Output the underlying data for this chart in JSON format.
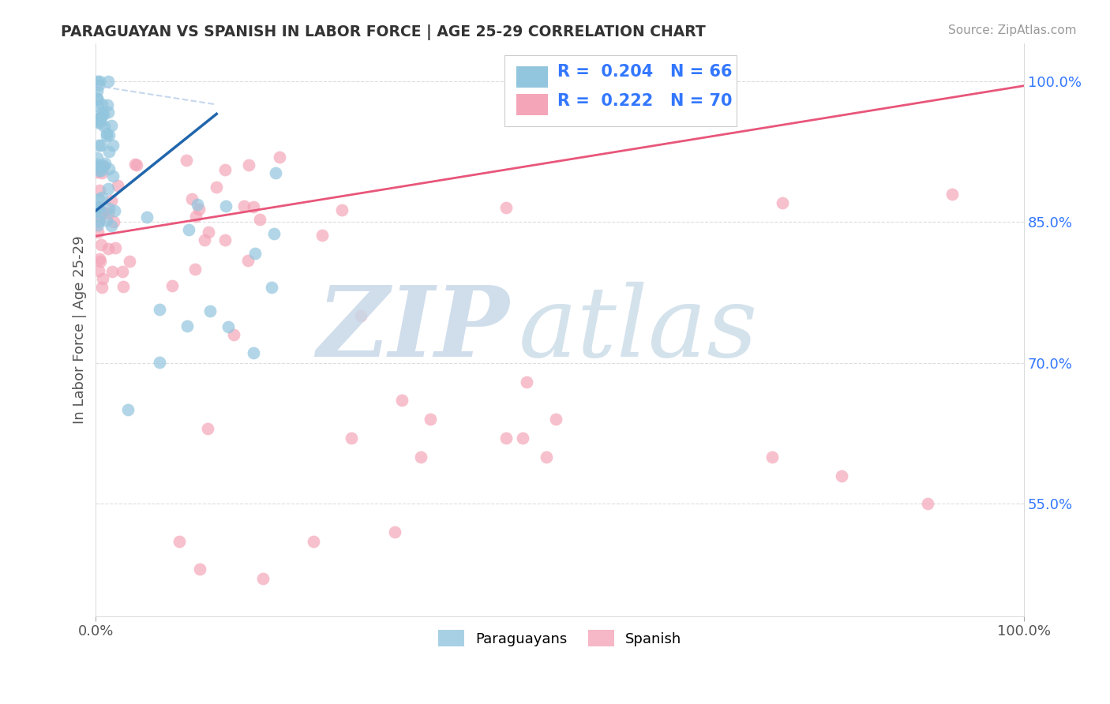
{
  "title": "PARAGUAYAN VS SPANISH IN LABOR FORCE | AGE 25-29 CORRELATION CHART",
  "source": "Source: ZipAtlas.com",
  "ylabel": "In Labor Force | Age 25-29",
  "ytick_vals": [
    0.55,
    0.7,
    0.85,
    1.0
  ],
  "ytick_labels": [
    "55.0%",
    "70.0%",
    "85.0%",
    "100.0%"
  ],
  "legend_blue_R": 0.204,
  "legend_blue_N": 66,
  "legend_pink_R": 0.222,
  "legend_pink_N": 70,
  "blue_color": "#92c5de",
  "pink_color": "#f4a6b8",
  "blue_line_color": "#2166ac",
  "pink_line_color": "#e8567a",
  "blue_line_dashed_color": "#aec7e8",
  "title_color": "#333333",
  "source_color": "#999999",
  "legend_color": "#3377ff",
  "grid_color": "#dddddd",
  "background_color": "#ffffff",
  "xmin": 0.0,
  "xmax": 1.0,
  "ymin": 0.43,
  "ymax": 1.04
}
